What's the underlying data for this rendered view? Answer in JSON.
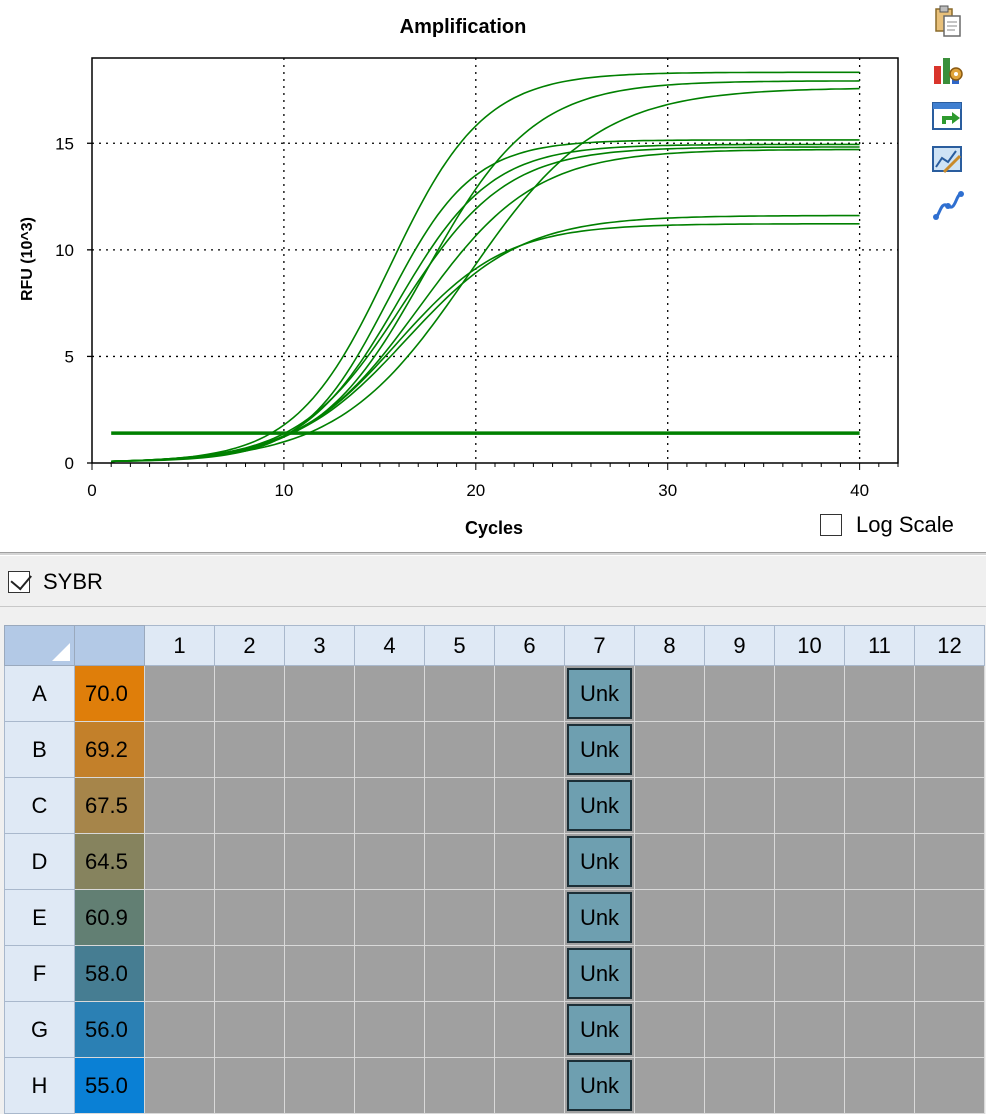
{
  "chart_data": {
    "type": "line",
    "title": "Amplification",
    "xlabel": "Cycles",
    "ylabel": "RFU (10^3)",
    "xlim": [
      0,
      42
    ],
    "ylim": [
      0,
      19
    ],
    "xticks": [
      0,
      10,
      20,
      30,
      40
    ],
    "yticks": [
      0,
      5,
      10,
      15
    ],
    "grid": true,
    "line_color": "#008000",
    "threshold": 1.4,
    "series": [
      {
        "plateau": 18.3,
        "midpoint": 15.5,
        "slope": 2.45
      },
      {
        "plateau": 17.9,
        "midpoint": 17.4,
        "slope": 2.8
      },
      {
        "plateau": 17.6,
        "midpoint": 19.6,
        "slope": 3.4
      },
      {
        "plateau": 15.1,
        "midpoint": 15.4,
        "slope": 2.2
      },
      {
        "plateau": 14.9,
        "midpoint": 15.9,
        "slope": 2.45
      },
      {
        "plateau": 14.8,
        "midpoint": 16.2,
        "slope": 2.7
      },
      {
        "plateau": 14.7,
        "midpoint": 17.1,
        "slope": 3.0
      },
      {
        "plateau": 11.6,
        "midpoint": 16.4,
        "slope": 3.0
      },
      {
        "plateau": 11.2,
        "midpoint": 15.9,
        "slope": 2.8
      }
    ]
  },
  "toolbar_icons": [
    "copy-icon",
    "chart-settings-icon",
    "export-icon",
    "chart-tools-icon",
    "curve-fit-icon"
  ],
  "log_scale": {
    "label": "Log Scale",
    "checked": false
  },
  "fluorophore": {
    "label": "SYBR",
    "checked": true
  },
  "plate": {
    "columns": [
      "1",
      "2",
      "3",
      "4",
      "5",
      "6",
      "7",
      "8",
      "9",
      "10",
      "11",
      "12"
    ],
    "rows": [
      {
        "label": "A",
        "temp": "70.0",
        "color": "#df7e0a",
        "well7": "Unk"
      },
      {
        "label": "B",
        "temp": "69.2",
        "color": "#c3802a",
        "well7": "Unk"
      },
      {
        "label": "C",
        "temp": "67.5",
        "color": "#a6854a",
        "well7": "Unk"
      },
      {
        "label": "D",
        "temp": "64.5",
        "color": "#86835e",
        "well7": "Unk"
      },
      {
        "label": "E",
        "temp": "60.9",
        "color": "#627f73",
        "well7": "Unk"
      },
      {
        "label": "F",
        "temp": "58.0",
        "color": "#467d92",
        "well7": "Unk"
      },
      {
        "label": "G",
        "temp": "56.0",
        "color": "#2b80b4",
        "well7": "Unk"
      },
      {
        "label": "H",
        "temp": "55.0",
        "color": "#0a80d5",
        "well7": "Unk"
      }
    ]
  }
}
